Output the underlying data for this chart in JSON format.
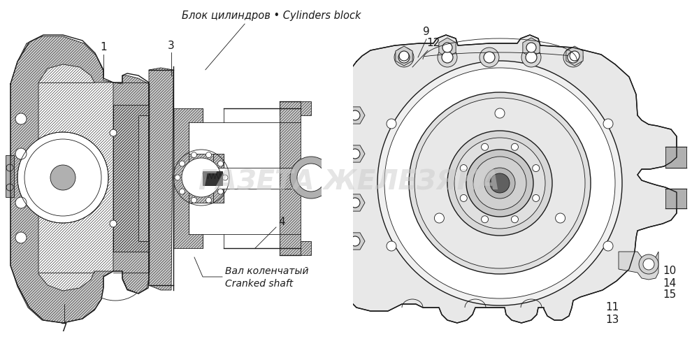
{
  "bg_color": "#ffffff",
  "line_color": "#1a1a1a",
  "gray_light": "#d8d8d8",
  "gray_med": "#b0b0b0",
  "gray_dark": "#888888",
  "watermark_color": "#cccccc",
  "watermark_text": "ГАЗЕТА ЖЕЛЕЗЯКА",
  "title_label": "Блок цилиндров • Cylinders block",
  "cranked_label_ru": "Вал коленчатый",
  "cranked_label_en": "Cranked shaft",
  "figsize": [
    10.0,
    5.05
  ],
  "dpi": 100
}
